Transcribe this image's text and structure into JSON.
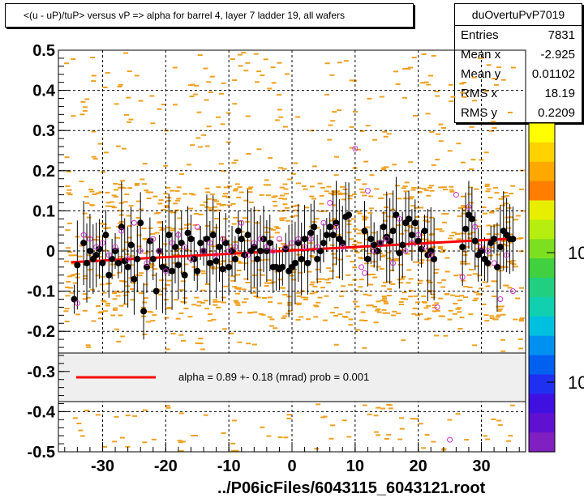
{
  "title": "<(u - uP)/tuP> versus   vP => alpha for barrel 4, layer 7 ladder 19, all wafers",
  "stats": {
    "name": "duOvertuPvP7019",
    "rows": [
      {
        "key": "Entries",
        "value": "7831"
      },
      {
        "key": "Mean x",
        "value": "-2.925"
      },
      {
        "key": "Mean y",
        "value": "0.01102"
      },
      {
        "key": "RMS x",
        "value": "18.19"
      },
      {
        "key": "RMS y",
        "value": "0.2209"
      }
    ]
  },
  "footer": "../P06icFiles/6043115_6043121.root",
  "legend": {
    "text": "alpha =    0.89 +-   0.18 (mrad) prob = 0.001"
  },
  "zaxis": {
    "labels": [
      "10",
      "10"
    ]
  },
  "colors": {
    "points_black": "#000000",
    "points_open": "#cc33cc",
    "fit_line": "#ff0000",
    "scatter": "#f0a020"
  },
  "chart_data": {
    "type": "scatter",
    "title": "<(u - uP)/tuP> versus   vP => alpha for barrel 4, layer 7 ladder 19, all wafers",
    "xlabel": "",
    "ylabel": "",
    "xlim": [
      -37,
      37
    ],
    "ylim": [
      -0.5,
      0.5
    ],
    "x_ticks": [
      -30,
      -20,
      -10,
      0,
      10,
      20,
      30
    ],
    "y_ticks": [
      -0.5,
      -0.4,
      -0.3,
      -0.2,
      -0.1,
      0,
      0.1,
      0.2,
      0.3,
      0.4,
      0.5
    ],
    "grid": true,
    "fit": {
      "x": [
        -35,
        35
      ],
      "y": [
        -0.028,
        0.031
      ]
    },
    "series": [
      {
        "marker": "filled",
        "points": [
          [
            -34.5,
            -0.12
          ],
          [
            -34,
            -0.035
          ],
          [
            -33,
            0.02
          ],
          [
            -32.5,
            -0.03
          ],
          [
            -32,
            0.0
          ],
          [
            -31.5,
            -0.02
          ],
          [
            -31,
            -0.01
          ],
          [
            -30.5,
            0.005
          ],
          [
            -30,
            -0.03
          ],
          [
            -29.5,
            0.04
          ],
          [
            -29,
            -0.06
          ],
          [
            -28.5,
            -0.02
          ],
          [
            -28,
            0.0
          ],
          [
            -27.5,
            -0.03
          ],
          [
            -27,
            0.06
          ],
          [
            -26.5,
            -0.025
          ],
          [
            -26,
            -0.04
          ],
          [
            -25.5,
            0.015
          ],
          [
            -25,
            -0.07
          ],
          [
            -24.5,
            -0.02
          ],
          [
            -24,
            0.07
          ],
          [
            -23.5,
            -0.15
          ],
          [
            -23,
            -0.04
          ],
          [
            -22.5,
            0.025
          ],
          [
            -22,
            -0.02
          ],
          [
            -21.5,
            -0.1
          ],
          [
            -21,
            0.0
          ],
          [
            -20.5,
            -0.04
          ],
          [
            -20,
            -0.045
          ],
          [
            -19.5,
            0.04
          ],
          [
            -19,
            -0.05
          ],
          [
            -18.5,
            0.01
          ],
          [
            -18,
            -0.035
          ],
          [
            -17.5,
            0.02
          ],
          [
            -17,
            -0.06
          ],
          [
            -16.5,
            0.045
          ],
          [
            -16,
            0.03
          ],
          [
            -15.5,
            -0.02
          ],
          [
            -15,
            -0.05
          ],
          [
            -14.5,
            0.02
          ],
          [
            -14,
            0.0
          ],
          [
            -13.5,
            0.03
          ],
          [
            -13,
            -0.03
          ],
          [
            -12.5,
            0.04
          ],
          [
            -12,
            -0.025
          ],
          [
            -11.5,
            0.01
          ],
          [
            -11,
            -0.045
          ],
          [
            -10.5,
            0.02
          ],
          [
            -10,
            -0.04
          ],
          [
            -9.5,
            0.0
          ],
          [
            -9,
            -0.02
          ],
          [
            -8.5,
            0.05
          ],
          [
            -8,
            0.03
          ],
          [
            -7.5,
            -0.01
          ],
          [
            -7,
            0.04
          ],
          [
            -6.5,
            0.0
          ],
          [
            -6,
            0.01
          ],
          [
            -5.5,
            -0.02
          ],
          [
            -5,
            0.0
          ],
          [
            -4.5,
            0.03
          ],
          [
            -4,
            0.0
          ],
          [
            -3.5,
            0.02
          ],
          [
            -3,
            -0.04
          ],
          [
            -2.5,
            -0.04
          ],
          [
            -2,
            -0.045
          ],
          [
            -1.5,
            -0.04
          ],
          [
            -1,
            0.005
          ],
          [
            -0.5,
            -0.05
          ],
          [
            0,
            -0.04
          ],
          [
            0.5,
            -0.03
          ],
          [
            1,
            0.02
          ],
          [
            1.5,
            -0.02
          ],
          [
            2,
            0.03
          ],
          [
            2.5,
            -0.03
          ],
          [
            3,
            0.045
          ],
          [
            3.5,
            0.06
          ],
          [
            4,
            -0.02
          ],
          [
            4.5,
            0.0
          ],
          [
            5,
            0.02
          ],
          [
            5.5,
            0.04
          ],
          [
            6,
            0.06
          ],
          [
            6.5,
            0.04
          ],
          [
            7,
            0.07
          ],
          [
            7.5,
            0.03
          ],
          [
            8,
            0.02
          ],
          [
            8.5,
            0.085
          ],
          [
            9,
            0.09
          ],
          [
            11.5,
            0.05
          ],
          [
            12,
            -0.02
          ],
          [
            12.5,
            0.03
          ],
          [
            13,
            0.015
          ],
          [
            13.5,
            0.0
          ],
          [
            14,
            0.02
          ],
          [
            14.5,
            0.06
          ],
          [
            15,
            0.035
          ],
          [
            15.5,
            0.025
          ],
          [
            16,
            0.05
          ],
          [
            16.5,
            0.09
          ],
          [
            17,
            -0.005
          ],
          [
            17.5,
            0.015
          ],
          [
            18,
            0.07
          ],
          [
            18.5,
            0.08
          ],
          [
            19,
            0.04
          ],
          [
            19.5,
            0.07
          ],
          [
            20,
            0.025
          ],
          [
            20.5,
            0.005
          ],
          [
            21,
            0.05
          ],
          [
            21.5,
            -0.01
          ],
          [
            22,
            0.0
          ],
          [
            22.5,
            -0.02
          ],
          [
            27,
            0.01
          ],
          [
            27.5,
            0.055
          ],
          [
            28,
            0.09
          ],
          [
            28.5,
            0.08
          ],
          [
            29,
            0.025
          ],
          [
            29.5,
            -0.01
          ],
          [
            30,
            0.0
          ],
          [
            30.5,
            -0.02
          ],
          [
            31,
            -0.03
          ],
          [
            31.5,
            0.02
          ],
          [
            32,
            0.03
          ],
          [
            32.5,
            -0.04
          ],
          [
            33,
            0.01
          ],
          [
            33.5,
            0.05
          ],
          [
            34,
            0.04
          ],
          [
            34.5,
            0.03
          ],
          [
            35,
            0.03
          ]
        ]
      },
      {
        "marker": "open",
        "points": [
          [
            -34,
            -0.13
          ],
          [
            -33,
            0.04
          ],
          [
            -32,
            0.03
          ],
          [
            -31,
            0.01
          ],
          [
            -30,
            0.02
          ],
          [
            -29,
            -0.01
          ],
          [
            -28,
            0.01
          ],
          [
            -27,
            0.05
          ],
          [
            -26,
            -0.02
          ],
          [
            -25,
            0.07
          ],
          [
            -24,
            0.0
          ],
          [
            -23,
            -0.03
          ],
          [
            -22,
            0.03
          ],
          [
            -21,
            0.0
          ],
          [
            -20,
            -0.05
          ],
          [
            -19,
            0.02
          ],
          [
            -18,
            0.04
          ],
          [
            -17,
            0.01
          ],
          [
            -16,
            -0.02
          ],
          [
            -15,
            0.06
          ],
          [
            -14,
            0.0
          ],
          [
            -13,
            0.02
          ],
          [
            -12,
            -0.01
          ],
          [
            -11,
            0.03
          ],
          [
            -10,
            0.0
          ],
          [
            -9,
            0.01
          ],
          [
            -8,
            0.07
          ],
          [
            -7,
            -0.01
          ],
          [
            -6,
            0.02
          ],
          [
            -5,
            0.03
          ],
          [
            -4,
            0.01
          ],
          [
            -3,
            0.0
          ],
          [
            -2,
            0.03
          ],
          [
            -1,
            0.01
          ],
          [
            0,
            0.02
          ],
          [
            1,
            0.03
          ],
          [
            2,
            0.01
          ],
          [
            3,
            0.03
          ],
          [
            4,
            0.01
          ],
          [
            5,
            0.07
          ],
          [
            6,
            0.12
          ],
          [
            7,
            0.06
          ],
          [
            8,
            0.01
          ],
          [
            10,
            0.255
          ],
          [
            11,
            -0.04
          ],
          [
            11.5,
            -0.055
          ],
          [
            12,
            0.15
          ],
          [
            13,
            0.0
          ],
          [
            14,
            0.02
          ],
          [
            15,
            0.03
          ],
          [
            16,
            -0.03
          ],
          [
            17,
            0.08
          ],
          [
            18,
            0.0
          ],
          [
            19,
            0.02
          ],
          [
            20,
            0.04
          ],
          [
            21,
            0.01
          ],
          [
            22,
            -0.01
          ],
          [
            23,
            -0.14
          ],
          [
            25,
            -0.47
          ],
          [
            26,
            0.14
          ],
          [
            27,
            -0.065
          ],
          [
            28,
            0.11
          ],
          [
            29,
            0.06
          ],
          [
            30,
            0.01
          ],
          [
            31,
            0.0
          ],
          [
            32,
            -0.03
          ],
          [
            33,
            -0.12
          ],
          [
            34,
            -0.01
          ],
          [
            35,
            -0.1
          ]
        ]
      }
    ]
  }
}
